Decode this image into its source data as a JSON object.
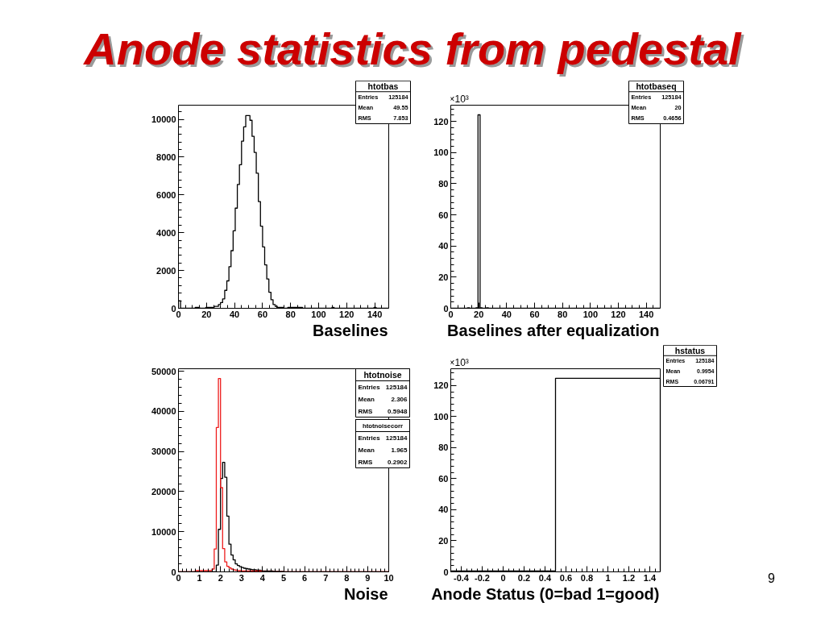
{
  "chart_data": [
    {
      "type": "histogram",
      "title": "Anode statistics from pedestal",
      "xlabel": "Baselines",
      "color": "#000000",
      "bins": [
        0,
        1.5,
        3,
        4.5,
        6,
        7.5,
        9,
        10.5,
        12,
        13.5,
        15,
        16.5,
        18,
        19.5,
        21,
        22.5,
        24,
        25.5,
        27,
        28.5,
        30,
        31.5,
        33,
        34.5,
        36,
        37.5,
        39,
        40.5,
        42,
        43.5,
        45,
        46.5,
        48,
        49.5,
        51,
        52.5,
        54,
        55.5,
        57,
        58.5,
        60,
        61.5,
        63,
        64.5,
        66,
        67.5,
        69,
        70.5,
        72,
        73.5,
        75,
        76.5,
        78,
        79.5,
        81,
        82.5,
        84,
        85.5,
        87,
        88.5,
        90,
        91.5,
        93,
        94.5,
        96,
        97.5,
        99,
        100.5,
        102,
        103.5,
        105,
        106.5,
        108,
        109.5,
        111,
        112.5,
        114,
        115.5,
        117,
        118.5,
        120,
        121.5,
        123,
        124.5,
        126,
        127.5,
        129,
        130.5,
        132,
        133.5,
        135,
        136.5,
        138,
        139.5,
        141,
        142.5,
        144,
        145.5,
        147,
        148.5,
        150
      ],
      "values": [
        400,
        0,
        0,
        0,
        0,
        0,
        0,
        0,
        50,
        50,
        0,
        0,
        0,
        50,
        50,
        50,
        50,
        100,
        100,
        200,
        300,
        500,
        950,
        1450,
        2200,
        3050,
        4100,
        5300,
        6550,
        7600,
        8850,
        9600,
        10200,
        10200,
        9950,
        9100,
        8250,
        7150,
        5650,
        4350,
        3250,
        2300,
        1550,
        850,
        450,
        200,
        100,
        50,
        50,
        50,
        0,
        0,
        50,
        50,
        50,
        50,
        50,
        50,
        50,
        0,
        0,
        0,
        0,
        0,
        0,
        0,
        0,
        0,
        0,
        0,
        0,
        0,
        0,
        50,
        0,
        0,
        0,
        0,
        0,
        0,
        0,
        0,
        0,
        0,
        0,
        0,
        0,
        0,
        0,
        0,
        0,
        0,
        0,
        50,
        0,
        0,
        0,
        0,
        0,
        0
      ],
      "xlim": [
        0,
        150
      ],
      "ylim": [
        0,
        10750
      ],
      "xticks": [
        0,
        {
          "value": 5,
          "label": null
        },
        {
          "value": 10,
          "label": null
        },
        {
          "value": 15,
          "label": null
        },
        20,
        {
          "value": 25,
          "label": null
        },
        {
          "value": 30,
          "label": null
        },
        {
          "value": 35,
          "label": null
        },
        40,
        {
          "value": 45,
          "label": null
        },
        {
          "value": 50,
          "label": null
        },
        {
          "value": 55,
          "label": null
        },
        60,
        {
          "value": 65,
          "label": null
        },
        {
          "value": 70,
          "label": null
        },
        {
          "value": 75,
          "label": null
        },
        80,
        {
          "value": 85,
          "label": null
        },
        {
          "value": 90,
          "label": null
        },
        {
          "value": 95,
          "label": null
        },
        100,
        {
          "value": 105,
          "label": null
        },
        {
          "value": 110,
          "label": null
        },
        {
          "value": 115,
          "label": null
        },
        120,
        {
          "value": 125,
          "label": null
        },
        {
          "value": 130,
          "label": null
        },
        {
          "value": 135,
          "label": null
        },
        140,
        {
          "value": 145,
          "label": null
        }
      ],
      "yticks": [
        0,
        {
          "value": 400,
          "label": null
        },
        {
          "value": 800,
          "label": null
        },
        {
          "value": 1200,
          "label": null
        },
        {
          "value": 1600,
          "label": null
        },
        2000,
        {
          "value": 2400,
          "label": null
        },
        {
          "value": 2800,
          "label": null
        },
        {
          "value": 3200,
          "label": null
        },
        {
          "value": 3600,
          "label": null
        },
        4000,
        {
          "value": 4400,
          "label": null
        },
        {
          "value": 4800,
          "label": null
        },
        {
          "value": 5200,
          "label": null
        },
        {
          "value": 5600,
          "label": null
        },
        6000,
        {
          "value": 6400,
          "label": null
        },
        {
          "value": 6800,
          "label": null
        },
        {
          "value": 7200,
          "label": null
        },
        {
          "value": 7600,
          "label": null
        },
        8000,
        {
          "value": 8400,
          "label": null
        },
        {
          "value": 8800,
          "label": null
        },
        {
          "value": 9200,
          "label": null
        },
        {
          "value": 9600,
          "label": null
        },
        10000,
        {
          "value": 10400,
          "label": null
        }
      ],
      "annotations": [
        "htotbas",
        "Entries 125184",
        "Mean 49.55",
        "RMS 7.853"
      ]
    },
    {
      "type": "histogram",
      "xlabel": "Baselines after equalization",
      "ylabel": "×10³",
      "color": "#000000",
      "bins": [
        0,
        1.5,
        3,
        4.5,
        6,
        7.5,
        9,
        10.5,
        12,
        13.5,
        15,
        16.5,
        18,
        19.5,
        21,
        22.5,
        24,
        25.5,
        27,
        28.5,
        30,
        31.5,
        33,
        34.5,
        36,
        37.5,
        39,
        40.5,
        42,
        43.5,
        45,
        46.5,
        48,
        49.5,
        51,
        52.5,
        54,
        55.5,
        57,
        58.5,
        60,
        61.5,
        63,
        64.5,
        66,
        67.5,
        69,
        70.5,
        72,
        73.5,
        75,
        76.5,
        78,
        79.5,
        81,
        82.5,
        84,
        85.5,
        87,
        88.5,
        90,
        91.5,
        93,
        94.5,
        96,
        97.5,
        99,
        100.5,
        102,
        103.5,
        105,
        106.5,
        108,
        109.5,
        111,
        112.5,
        114,
        115.5,
        117,
        118.5,
        120,
        121.5,
        123,
        124.5,
        126,
        127.5,
        129,
        130.5,
        132,
        133.5,
        135,
        136.5,
        138,
        139.5,
        141,
        142.5,
        144,
        145.5,
        147,
        148.5,
        150
      ],
      "values": [
        0,
        0,
        0,
        0,
        0,
        0,
        0,
        0,
        0.3,
        0,
        0,
        0,
        0.3,
        124.2,
        0.3,
        0,
        0,
        0.3,
        0,
        0,
        0,
        0,
        0,
        0,
        0,
        0,
        0,
        0,
        0,
        0,
        0,
        0,
        0,
        0,
        0,
        0,
        0,
        0,
        0,
        0,
        0,
        0,
        0,
        0,
        0,
        0,
        0,
        0,
        0,
        0,
        0,
        0,
        0,
        0,
        0,
        0,
        0,
        0,
        0,
        0,
        0,
        0,
        0,
        0,
        0,
        0,
        0,
        0,
        0,
        0,
        0,
        0,
        0,
        0,
        0,
        0,
        0,
        0,
        0,
        0,
        0,
        0,
        0,
        0,
        0,
        0,
        0,
        0,
        0,
        0,
        0,
        0,
        0,
        0,
        0,
        0,
        0,
        0,
        0,
        0
      ],
      "xlim": [
        0,
        150
      ],
      "ylim": [
        0,
        130.4
      ],
      "xticks": [
        0,
        {
          "value": 5,
          "label": null
        },
        {
          "value": 10,
          "label": null
        },
        {
          "value": 15,
          "label": null
        },
        20,
        {
          "value": 25,
          "label": null
        },
        {
          "value": 30,
          "label": null
        },
        {
          "value": 35,
          "label": null
        },
        40,
        {
          "value": 45,
          "label": null
        },
        {
          "value": 50,
          "label": null
        },
        {
          "value": 55,
          "label": null
        },
        60,
        {
          "value": 65,
          "label": null
        },
        {
          "value": 70,
          "label": null
        },
        {
          "value": 75,
          "label": null
        },
        80,
        {
          "value": 85,
          "label": null
        },
        {
          "value": 90,
          "label": null
        },
        {
          "value": 95,
          "label": null
        },
        100,
        {
          "value": 105,
          "label": null
        },
        {
          "value": 110,
          "label": null
        },
        {
          "value": 115,
          "label": null
        },
        120,
        {
          "value": 125,
          "label": null
        },
        {
          "value": 130,
          "label": null
        },
        {
          "value": 135,
          "label": null
        },
        140,
        {
          "value": 145,
          "label": null
        }
      ],
      "yticks": [
        0,
        {
          "value": 4,
          "label": null
        },
        {
          "value": 8,
          "label": null
        },
        {
          "value": 12,
          "label": null
        },
        {
          "value": 16,
          "label": null
        },
        20,
        {
          "value": 24,
          "label": null
        },
        {
          "value": 28,
          "label": null
        },
        {
          "value": 32,
          "label": null
        },
        {
          "value": 36,
          "label": null
        },
        40,
        {
          "value": 44,
          "label": null
        },
        {
          "value": 48,
          "label": null
        },
        {
          "value": 52,
          "label": null
        },
        {
          "value": 56,
          "label": null
        },
        60,
        {
          "value": 64,
          "label": null
        },
        {
          "value": 68,
          "label": null
        },
        {
          "value": 72,
          "label": null
        },
        {
          "value": 76,
          "label": null
        },
        80,
        {
          "value": 84,
          "label": null
        },
        {
          "value": 88,
          "label": null
        },
        {
          "value": 92,
          "label": null
        },
        {
          "value": 96,
          "label": null
        },
        100,
        {
          "value": 104,
          "label": null
        },
        {
          "value": 108,
          "label": null
        },
        {
          "value": 112,
          "label": null
        },
        {
          "value": 116,
          "label": null
        },
        120,
        {
          "value": 124,
          "label": null
        },
        {
          "value": 128,
          "label": null
        }
      ],
      "annotations": [
        "htotbaseq",
        "Entries 125184",
        "Mean 20",
        "RMS 0.4656"
      ]
    },
    {
      "type": "histogram",
      "xlabel": "Noise",
      "bins": [
        0,
        0.1,
        0.2,
        0.3,
        0.4,
        0.5,
        0.6,
        0.7,
        0.8,
        0.9,
        1,
        1.1,
        1.2,
        1.3,
        1.4,
        1.5,
        1.6,
        1.7,
        1.8,
        1.9,
        2,
        2.1,
        2.2,
        2.3,
        2.4,
        2.5,
        2.6,
        2.7,
        2.8,
        2.9,
        3,
        3.1,
        3.2,
        3.3,
        3.4,
        3.5,
        3.6,
        3.7,
        3.8,
        3.9,
        4,
        4.1,
        4.2,
        4.3,
        4.4,
        4.5,
        4.6,
        4.7,
        4.8,
        4.9,
        5,
        5.1,
        5.2,
        5.3,
        5.4,
        5.5,
        5.6,
        5.7,
        5.8,
        5.9,
        6,
        6.1,
        6.2,
        6.3,
        6.4,
        6.5,
        6.6,
        6.7,
        6.8,
        6.9,
        7,
        7.1,
        7.2,
        7.3,
        7.4,
        7.5,
        7.6,
        7.7,
        7.8,
        7.9,
        8,
        8.1,
        8.2,
        8.3,
        8.4,
        8.5,
        8.6,
        8.7,
        8.8,
        8.9,
        9,
        9.1,
        9.2,
        9.3,
        9.4,
        9.5,
        9.6,
        9.7,
        9.8,
        9.9,
        10
      ],
      "series": [
        {
          "color": "#000000",
          "values": [
            0,
            0,
            0,
            0,
            0,
            0,
            0,
            0,
            0,
            0,
            0,
            0,
            0,
            0,
            0,
            0,
            0,
            0,
            1700,
            10600,
            23300,
            27300,
            23600,
            13900,
            6900,
            4200,
            3000,
            2000,
            1600,
            1300,
            1100,
            900,
            800,
            700,
            600,
            500,
            500,
            400,
            400,
            300,
            200,
            200,
            200,
            200,
            200,
            100,
            100,
            100,
            100,
            100,
            0,
            0,
            0,
            0,
            0,
            0,
            0,
            0,
            0,
            0,
            0,
            0,
            0,
            0,
            0,
            0,
            0,
            0,
            0,
            0,
            0,
            0,
            0,
            0,
            0,
            0,
            0,
            0,
            0,
            0,
            0,
            0,
            0,
            0,
            0,
            0,
            0,
            0,
            0,
            0,
            0,
            0,
            0,
            0,
            0,
            0,
            0,
            0,
            0,
            0
          ]
        },
        {
          "color": "#ee1c1c",
          "values": [
            0,
            0,
            0,
            0,
            0,
            0,
            0,
            0,
            300,
            300,
            300,
            300,
            300,
            300,
            300,
            300,
            700,
            5700,
            36000,
            48200,
            21000,
            5800,
            2500,
            1400,
            1000,
            700,
            500,
            400,
            300,
            300,
            200,
            200,
            200,
            200,
            200,
            200,
            200,
            200,
            200,
            200,
            0,
            0,
            0,
            0,
            0,
            0,
            0,
            0,
            0,
            0,
            0,
            0,
            0,
            0,
            0,
            0,
            0,
            0,
            0,
            0,
            0,
            0,
            0,
            0,
            0,
            0,
            0,
            0,
            0,
            0,
            0,
            0,
            0,
            0,
            0,
            0,
            0,
            0,
            0,
            0,
            0,
            0,
            0,
            0,
            0,
            0,
            0,
            0,
            0,
            0,
            0,
            0,
            0,
            0,
            0,
            0,
            0,
            0,
            0,
            0
          ]
        }
      ],
      "xlim": [
        0,
        10
      ],
      "ylim": [
        0,
        50650
      ],
      "xticks": [
        0,
        {
          "value": 0.2,
          "label": null
        },
        {
          "value": 0.4,
          "label": null
        },
        {
          "value": 0.6,
          "label": null
        },
        {
          "value": 0.8,
          "label": null
        },
        1,
        {
          "value": 1.2,
          "label": null
        },
        {
          "value": 1.4,
          "label": null
        },
        {
          "value": 1.6,
          "label": null
        },
        {
          "value": 1.8,
          "label": null
        },
        2,
        {
          "value": 2.2,
          "label": null
        },
        {
          "value": 2.4,
          "label": null
        },
        {
          "value": 2.6,
          "label": null
        },
        {
          "value": 2.8,
          "label": null
        },
        3,
        {
          "value": 3.2,
          "label": null
        },
        {
          "value": 3.4,
          "label": null
        },
        {
          "value": 3.6,
          "label": null
        },
        {
          "value": 3.8,
          "label": null
        },
        4,
        {
          "value": 4.2,
          "label": null
        },
        {
          "value": 4.4,
          "label": null
        },
        {
          "value": 4.6,
          "label": null
        },
        {
          "value": 4.8,
          "label": null
        },
        5,
        {
          "value": 5.2,
          "label": null
        },
        {
          "value": 5.4,
          "label": null
        },
        {
          "value": 5.6,
          "label": null
        },
        {
          "value": 5.8,
          "label": null
        },
        6,
        {
          "value": 6.2,
          "label": null
        },
        {
          "value": 6.4,
          "label": null
        },
        {
          "value": 6.6,
          "label": null
        },
        {
          "value": 6.8,
          "label": null
        },
        7,
        {
          "value": 7.2,
          "label": null
        },
        {
          "value": 7.4,
          "label": null
        },
        {
          "value": 7.6,
          "label": null
        },
        {
          "value": 7.8,
          "label": null
        },
        8,
        {
          "value": 8.2,
          "label": null
        },
        {
          "value": 8.4,
          "label": null
        },
        {
          "value": 8.6,
          "label": null
        },
        {
          "value": 8.8,
          "label": null
        },
        9,
        {
          "value": 9.2,
          "label": null
        },
        {
          "value": 9.4,
          "label": null
        },
        {
          "value": 9.6,
          "label": null
        },
        {
          "value": 9.8,
          "label": null
        },
        10
      ],
      "yticks": [
        0,
        {
          "value": 2000,
          "label": null
        },
        {
          "value": 4000,
          "label": null
        },
        {
          "value": 6000,
          "label": null
        },
        {
          "value": 8000,
          "label": null
        },
        10000,
        {
          "value": 12000,
          "label": null
        },
        {
          "value": 14000,
          "label": null
        },
        {
          "value": 16000,
          "label": null
        },
        {
          "value": 18000,
          "label": null
        },
        20000,
        {
          "value": 22000,
          "label": null
        },
        {
          "value": 24000,
          "label": null
        },
        {
          "value": 26000,
          "label": null
        },
        {
          "value": 28000,
          "label": null
        },
        30000,
        {
          "value": 32000,
          "label": null
        },
        {
          "value": 34000,
          "label": null
        },
        {
          "value": 36000,
          "label": null
        },
        {
          "value": 38000,
          "label": null
        },
        40000,
        {
          "value": 42000,
          "label": null
        },
        {
          "value": 44000,
          "label": null
        },
        {
          "value": 46000,
          "label": null
        },
        {
          "value": 48000,
          "label": null
        },
        50000
      ],
      "annotations": [
        "htotnoise",
        "Entries 125184",
        "Mean 2.306",
        "RMS 0.5948",
        "htotnoisecorr",
        "Entries 125184",
        "Mean 1.965",
        "RMS 0.2902"
      ]
    },
    {
      "type": "histogram",
      "xlabel": "Anode Status (0=bad 1=good)",
      "ylabel": "×10³",
      "color": "#000000",
      "bins": [
        -0.5,
        0.5,
        1.5
      ],
      "values": [
        0.6,
        124.6
      ],
      "xlim": [
        -0.5,
        1.5
      ],
      "ylim": [
        0,
        130.8
      ],
      "xticks": [
        {
          "value": -0.45,
          "label": null
        },
        -0.4,
        {
          "value": -0.35,
          "label": null
        },
        {
          "value": -0.3,
          "label": null
        },
        {
          "value": -0.25,
          "label": null
        },
        -0.2,
        {
          "value": -0.15,
          "label": null
        },
        {
          "value": -0.1,
          "label": null
        },
        {
          "value": -0.05,
          "label": null
        },
        0,
        {
          "value": 0.05,
          "label": null
        },
        {
          "value": 0.1,
          "label": null
        },
        {
          "value": 0.15,
          "label": null
        },
        0.2,
        {
          "value": 0.25,
          "label": null
        },
        {
          "value": 0.3,
          "label": null
        },
        {
          "value": 0.35,
          "label": null
        },
        0.4,
        {
          "value": 0.45,
          "label": null
        },
        {
          "value": 0.5,
          "label": null
        },
        {
          "value": 0.55,
          "label": null
        },
        0.6,
        {
          "value": 0.65,
          "label": null
        },
        {
          "value": 0.7,
          "label": null
        },
        {
          "value": 0.75,
          "label": null
        },
        0.8,
        {
          "value": 0.85,
          "label": null
        },
        {
          "value": 0.9,
          "label": null
        },
        {
          "value": 0.95,
          "label": null
        },
        1,
        {
          "value": 1.05,
          "label": null
        },
        {
          "value": 1.1,
          "label": null
        },
        {
          "value": 1.15,
          "label": null
        },
        1.2,
        {
          "value": 1.25,
          "label": null
        },
        {
          "value": 1.3,
          "label": null
        },
        {
          "value": 1.35,
          "label": null
        },
        1.4,
        {
          "value": 1.45,
          "label": null
        }
      ],
      "yticks": [
        0,
        {
          "value": 4,
          "label": null
        },
        {
          "value": 8,
          "label": null
        },
        {
          "value": 12,
          "label": null
        },
        {
          "value": 16,
          "label": null
        },
        20,
        {
          "value": 24,
          "label": null
        },
        {
          "value": 28,
          "label": null
        },
        {
          "value": 32,
          "label": null
        },
        {
          "value": 36,
          "label": null
        },
        40,
        {
          "value": 44,
          "label": null
        },
        {
          "value": 48,
          "label": null
        },
        {
          "value": 52,
          "label": null
        },
        {
          "value": 56,
          "label": null
        },
        60,
        {
          "value": 64,
          "label": null
        },
        {
          "value": 68,
          "label": null
        },
        {
          "value": 72,
          "label": null
        },
        {
          "value": 76,
          "label": null
        },
        80,
        {
          "value": 84,
          "label": null
        },
        {
          "value": 88,
          "label": null
        },
        {
          "value": 92,
          "label": null
        },
        {
          "value": 96,
          "label": null
        },
        100,
        {
          "value": 104,
          "label": null
        },
        {
          "value": 108,
          "label": null
        },
        {
          "value": 112,
          "label": null
        },
        {
          "value": 116,
          "label": null
        },
        120,
        {
          "value": 124,
          "label": null
        },
        {
          "value": 128,
          "label": null
        }
      ],
      "annotations": [
        "hstatus",
        "Entries 125184",
        "Mean 0.9954",
        "RMS 0.06791",
        "9"
      ]
    }
  ]
}
